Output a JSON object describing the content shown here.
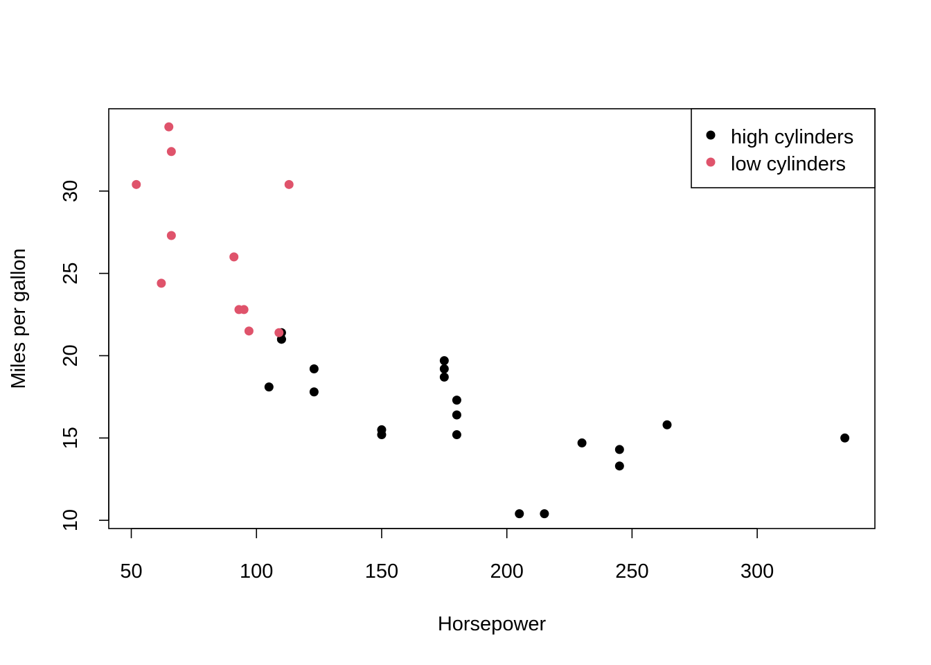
{
  "chart_data": {
    "type": "scatter",
    "title": "",
    "xlabel": "Horsepower",
    "ylabel": "Miles per gallon",
    "xlim": [
      41,
      347
    ],
    "ylim": [
      9.5,
      35.0
    ],
    "x_ticks": [
      50,
      100,
      150,
      200,
      250,
      300
    ],
    "y_ticks": [
      10,
      15,
      20,
      25,
      30
    ],
    "legend_position": "top-right",
    "grid": false,
    "series": [
      {
        "name": "high cylinders",
        "color": "#000000",
        "points": [
          [
            110,
            21.0
          ],
          [
            110,
            21.4
          ],
          [
            110,
            21.0
          ],
          [
            175,
            18.7
          ],
          [
            105,
            18.1
          ],
          [
            245,
            14.3
          ],
          [
            123,
            19.2
          ],
          [
            123,
            17.8
          ],
          [
            180,
            16.4
          ],
          [
            180,
            17.3
          ],
          [
            180,
            15.2
          ],
          [
            205,
            10.4
          ],
          [
            215,
            10.4
          ],
          [
            230,
            14.7
          ],
          [
            150,
            15.5
          ],
          [
            150,
            15.2
          ],
          [
            245,
            13.3
          ],
          [
            175,
            19.2
          ],
          [
            264,
            15.8
          ],
          [
            175,
            19.7
          ],
          [
            335,
            15.0
          ]
        ]
      },
      {
        "name": "low cylinders",
        "color": "#DF536B",
        "points": [
          [
            93,
            22.8
          ],
          [
            62,
            24.4
          ],
          [
            95,
            22.8
          ],
          [
            66,
            32.4
          ],
          [
            52,
            30.4
          ],
          [
            65,
            33.9
          ],
          [
            97,
            21.5
          ],
          [
            66,
            27.3
          ],
          [
            91,
            26.0
          ],
          [
            113,
            30.4
          ],
          [
            109,
            21.4
          ]
        ]
      }
    ]
  }
}
